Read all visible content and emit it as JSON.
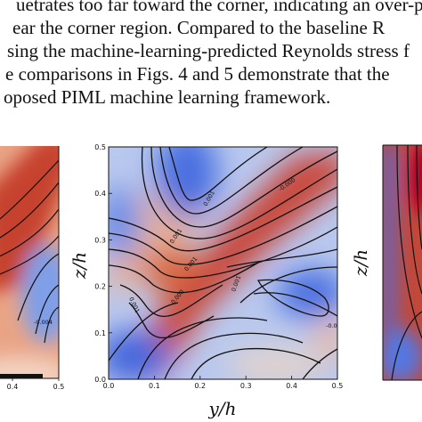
{
  "paper": {
    "lines": [
      "uetrates too far toward the corner, indicating an over-p",
      "ear the corner region.  Compared to the baseline R",
      "sing the machine-learning-predicted Reynolds stress f",
      "e comparisons in Figs. 4 and 5 demonstrate that the",
      "oposed PIML machine learning framework."
    ]
  },
  "figure": {
    "panels": [
      {
        "name": "left",
        "x_ticks": [
          "0.4",
          "0.5"
        ],
        "contour_labels": [
          "-0.004"
        ]
      },
      {
        "name": "center",
        "xlabel": "y/h",
        "ylabel": "z/h",
        "x_ticks": [
          "0.0",
          "0.1",
          "0.2",
          "0.3",
          "0.4",
          "0.5"
        ],
        "y_ticks": [
          "0.0",
          "0.1",
          "0.2",
          "0.3",
          "0.4",
          "0.5"
        ],
        "contour_labels": [
          "0.001",
          "-0.000",
          "0.001",
          "0.001",
          "0.000",
          "0.001",
          "0.001",
          "-0.004"
        ]
      },
      {
        "name": "right",
        "ylabel": "z/h"
      }
    ]
  },
  "chart_data": {
    "type": "heatmap",
    "xlabel": "y/h",
    "ylabel": "z/h",
    "xlim": [
      0.0,
      0.5
    ],
    "ylim": [
      0.0,
      0.5
    ],
    "x_ticks": [
      0.0,
      0.1,
      0.2,
      0.3,
      0.4,
      0.5
    ],
    "y_ticks": [
      0.0,
      0.1,
      0.2,
      0.3,
      0.4,
      0.5
    ],
    "grid": false,
    "colormap": [
      "#3b4cc0",
      "#dddddd",
      "#b40426"
    ],
    "contour_labels": [
      "0.001",
      "-0.000",
      "0.001",
      "0.001",
      "0.000",
      "0.001",
      "0.001",
      "-0.004"
    ]
  }
}
